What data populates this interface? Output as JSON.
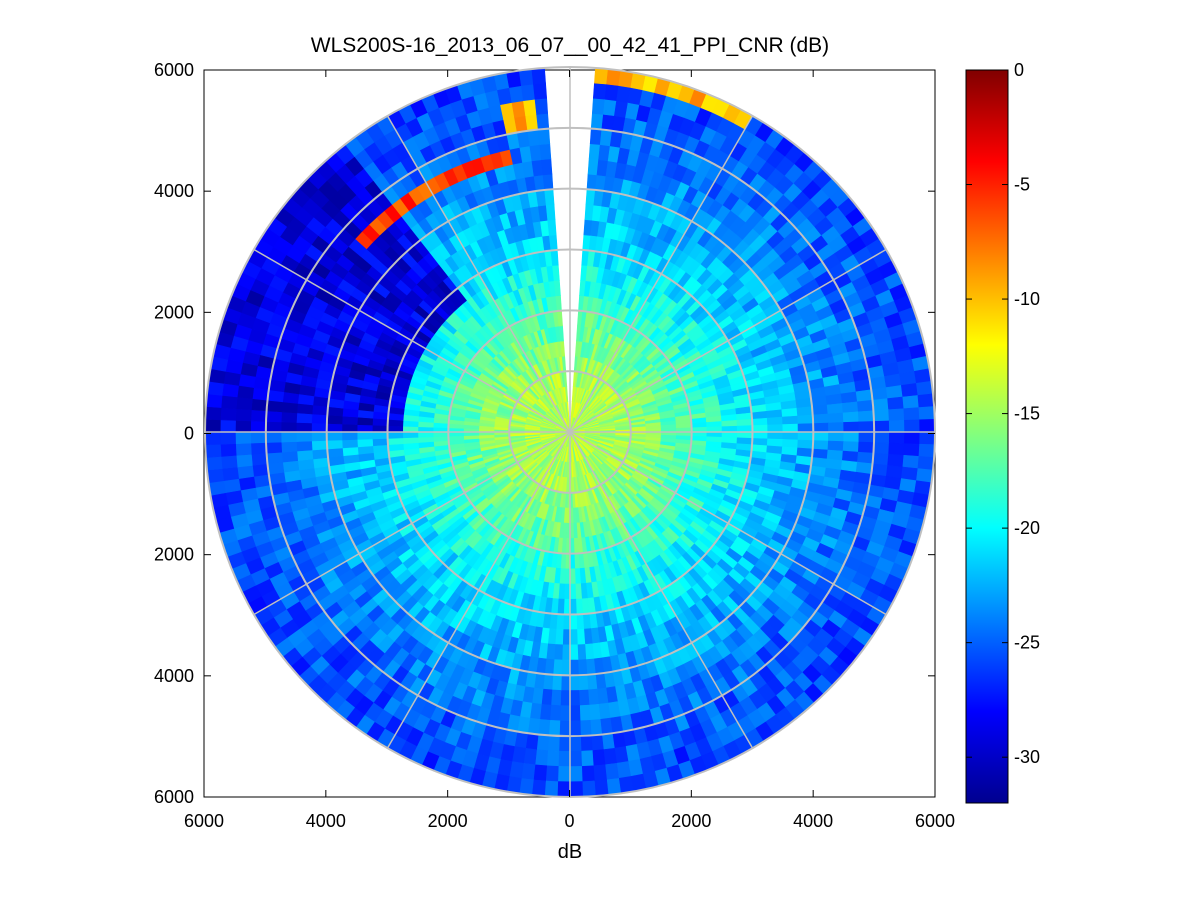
{
  "chart_data": {
    "type": "polar-heatmap",
    "title": "WLS200S-16_2013_06_07__00_42_41_PPI_CNR (dB)",
    "xlabel": "dB",
    "ylabel": "",
    "xlim": [
      -6000,
      6000
    ],
    "ylim": [
      -6000,
      6000
    ],
    "x_ticks": [
      -6000,
      -4000,
      -2000,
      0,
      2000,
      4000,
      6000
    ],
    "x_tick_labels": [
      "6000",
      "4000",
      "2000",
      "0",
      "2000",
      "4000",
      "6000"
    ],
    "y_ticks": [
      6000,
      4000,
      2000,
      0,
      -2000,
      -4000,
      -6000
    ],
    "y_tick_labels": [
      "6000",
      "4000",
      "2000",
      "0",
      "2000",
      "4000",
      "6000"
    ],
    "max_range": 6000,
    "range_rings": [
      1000,
      2000,
      3000,
      4000,
      5000,
      6000
    ],
    "spokes_deg": [
      0,
      30,
      60,
      90,
      120,
      150,
      180,
      210,
      240,
      270,
      300,
      330
    ],
    "gap_azimuth_deg": [
      -4,
      4
    ],
    "colorbar": {
      "min": -32,
      "max": 0,
      "ticks": [
        0,
        -5,
        -10,
        -15,
        -20,
        -25,
        -30
      ],
      "tick_labels": [
        "0",
        "-5",
        "-10",
        "-15",
        "-20",
        "-25",
        "-30"
      ],
      "colormap": "jet"
    },
    "cnr_profile": [
      {
        "range": 0,
        "cnr": -14
      },
      {
        "range": 1000,
        "cnr": -15
      },
      {
        "range": 2000,
        "cnr": -18
      },
      {
        "range": 3000,
        "cnr": -21
      },
      {
        "range": 4000,
        "cnr": -23
      },
      {
        "range": 5000,
        "cnr": -25
      },
      {
        "range": 6000,
        "cnr": -26
      }
    ],
    "low_cnr_sector": {
      "azimuth_deg": [
        270,
        322
      ],
      "min_range": 2800,
      "cnr": -29
    },
    "high_cnr_arcs": [
      {
        "azimuth_deg": [
          313,
          349
        ],
        "range": [
          4400,
          4800
        ],
        "cnr": -6
      },
      {
        "azimuth_deg": [
          349,
          354
        ],
        "range": [
          5100,
          5500
        ],
        "cnr": -9
      },
      {
        "azimuth_deg": [
          5,
          30
        ],
        "range": [
          5650,
          6000
        ],
        "cnr": -10
      }
    ]
  }
}
